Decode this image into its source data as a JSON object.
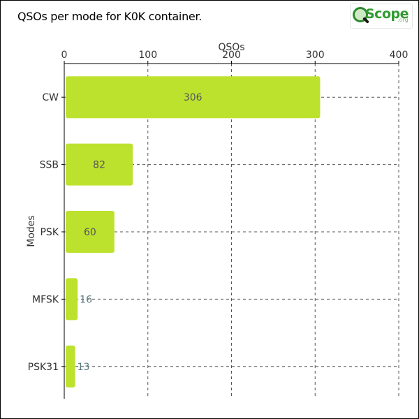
{
  "header": {
    "title": "QSOs per mode for K0K container.",
    "logo_text": "Scope",
    "logo_suffix": ".org"
  },
  "colors": {
    "bar": "#bde22e",
    "inside_label": "#555555",
    "outside_label": "#5b7a80",
    "grid": "#555555"
  },
  "chart_data": {
    "type": "bar",
    "orientation": "horizontal",
    "title": "QSOs per mode for K0K container.",
    "xlabel": "QSOs",
    "ylabel": "Modes",
    "categories": [
      "CW",
      "SSB",
      "PSK",
      "MFSK",
      "PSK31"
    ],
    "values": [
      306,
      82,
      60,
      16,
      13
    ],
    "xlim": [
      0,
      400
    ],
    "xticks": [
      0,
      100,
      200,
      300,
      400
    ],
    "grid": true,
    "x_axis_position": "top"
  }
}
